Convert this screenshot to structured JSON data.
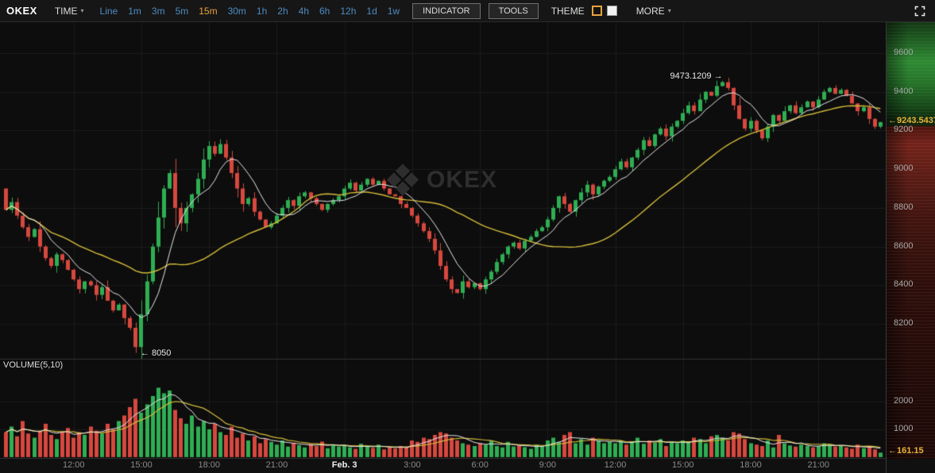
{
  "toolbar": {
    "logo": "OKEX",
    "time_label": "TIME",
    "caret": "▾",
    "timeframes": [
      {
        "label": "Line"
      },
      {
        "label": "1m"
      },
      {
        "label": "3m"
      },
      {
        "label": "5m"
      },
      {
        "label": "15m",
        "active": true
      },
      {
        "label": "30m"
      },
      {
        "label": "1h"
      },
      {
        "label": "2h"
      },
      {
        "label": "4h"
      },
      {
        "label": "6h"
      },
      {
        "label": "12h"
      },
      {
        "label": "1d"
      },
      {
        "label": "1w"
      }
    ],
    "indicator_button": "INDICATOR",
    "tools_button": "TOOLS",
    "theme_label": "THEME",
    "more_label": "MORE"
  },
  "watermark": {
    "text": "OKEX"
  },
  "chart_data": {
    "type": "candlestick",
    "interval": "15m",
    "open_first": 8900,
    "closes": [
      8790,
      8830,
      8760,
      8700,
      8650,
      8690,
      8600,
      8540,
      8500,
      8560,
      8530,
      8480,
      8430,
      8380,
      8420,
      8400,
      8350,
      8390,
      8320,
      8270,
      8300,
      8230,
      8180,
      8080,
      8250,
      8420,
      8600,
      8750,
      8900,
      8980,
      8800,
      8720,
      8800,
      8870,
      8950,
      9050,
      9120,
      9080,
      9130,
      9060,
      8980,
      8900,
      8820,
      8850,
      8780,
      8740,
      8700,
      8720,
      8760,
      8800,
      8840,
      8810,
      8860,
      8880,
      8850,
      8820,
      8790,
      8820,
      8840,
      8860,
      8900,
      8930,
      8890,
      8920,
      8950,
      8920,
      8940,
      8900,
      8870,
      8860,
      8820,
      8800,
      8760,
      8720,
      8680,
      8640,
      8580,
      8500,
      8430,
      8380,
      8360,
      8420,
      8390,
      8410,
      8380,
      8430,
      8470,
      8520,
      8560,
      8600,
      8620,
      8590,
      8630,
      8650,
      8680,
      8700,
      8740,
      8800,
      8860,
      8820,
      8780,
      8840,
      8880,
      8920,
      8870,
      8910,
      8940,
      8960,
      9000,
      9040,
      9010,
      9060,
      9100,
      9150,
      9120,
      9180,
      9210,
      9170,
      9220,
      9250,
      9290,
      9330,
      9300,
      9360,
      9400,
      9380,
      9430,
      9450,
      9420,
      9330,
      9260,
      9210,
      9250,
      9200,
      9160,
      9220,
      9280,
      9250,
      9300,
      9330,
      9290,
      9320,
      9350,
      9320,
      9360,
      9400,
      9420,
      9390,
      9410,
      9380,
      9340,
      9300,
      9320,
      9260,
      9220,
      9243.5437
    ],
    "volumes": [
      900,
      1100,
      750,
      1300,
      850,
      700,
      950,
      1200,
      800,
      650,
      900,
      1050,
      700,
      900,
      800,
      1100,
      950,
      850,
      1200,
      1000,
      1300,
      1500,
      1800,
      2100,
      1600,
      1900,
      2200,
      2500,
      2300,
      2400,
      1700,
      1400,
      1200,
      1500,
      1100,
      1300,
      1000,
      1200,
      900,
      800,
      1100,
      700,
      850,
      600,
      750,
      500,
      650,
      550,
      450,
      600,
      380,
      520,
      430,
      350,
      480,
      400,
      560,
      320,
      450,
      380,
      420,
      350,
      300,
      480,
      400,
      330,
      450,
      280,
      360,
      310,
      400,
      350,
      600,
      550,
      700,
      650,
      800,
      900,
      850,
      700,
      600,
      500,
      450,
      400,
      500,
      450,
      600,
      400,
      350,
      550,
      380,
      420,
      360,
      300,
      450,
      400,
      600,
      700,
      550,
      800,
      900,
      500,
      650,
      450,
      700,
      600,
      500,
      550,
      500,
      600,
      450,
      550,
      700,
      480,
      600,
      520,
      650,
      400,
      550,
      500,
      600,
      550,
      700,
      650,
      500,
      750,
      800,
      700,
      600,
      900,
      850,
      650,
      500,
      450,
      400,
      600,
      350,
      800,
      500,
      420,
      380,
      450,
      400,
      350,
      400,
      500,
      450,
      380,
      420,
      350,
      300,
      450,
      320,
      380,
      280,
      161.15
    ],
    "low_anchor": {
      "index": 23,
      "price": 8050,
      "label": "← 8050"
    },
    "high_anchor": {
      "index": 128,
      "price": 9473.1209,
      "label": "9473.1209 →"
    },
    "last_price": "9243.5437",
    "last_volume": "161.15",
    "last_price_arrow": "←",
    "price_axis": [
      9600,
      9400,
      9200,
      9000,
      8800,
      8600,
      8400,
      8200
    ],
    "volume_axis": [
      2000,
      1000
    ],
    "price_range": [
      8020,
      9760
    ],
    "volume_range": [
      0,
      2600
    ],
    "time_labels": [
      {
        "text": "12:00",
        "index": 12
      },
      {
        "text": "15:00",
        "index": 24
      },
      {
        "text": "18:00",
        "index": 36
      },
      {
        "text": "21:00",
        "index": 48
      },
      {
        "text": "Feb. 3",
        "index": 60,
        "emph": true
      },
      {
        "text": "3:00",
        "index": 72
      },
      {
        "text": "6:00",
        "index": 84
      },
      {
        "text": "9:00",
        "index": 96
      },
      {
        "text": "12:00",
        "index": 108
      },
      {
        "text": "15:00",
        "index": 120
      },
      {
        "text": "18:00",
        "index": 132
      },
      {
        "text": "21:00",
        "index": 144
      }
    ],
    "volume_indicator_label": "VOLUME(5,10)",
    "ma_fast_period": 7,
    "ma_slow_period": 30,
    "vol_ma_periods": [
      5,
      10
    ],
    "colors": {
      "up": "#2fae53",
      "down": "#d6483e",
      "ma_fast": "#e8e8e8",
      "ma_slow": "#d4bc3a",
      "grid": "#1d1d1d",
      "last_price": "#e9b23a"
    }
  }
}
